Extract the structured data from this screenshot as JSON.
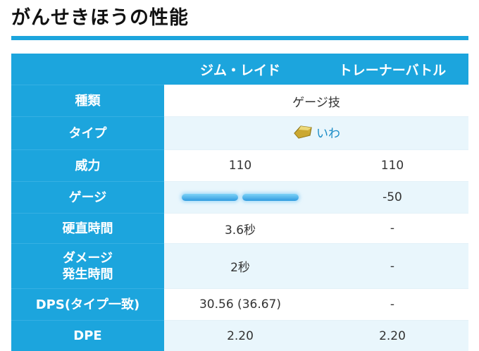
{
  "page": {
    "title": "がんせきほうの性能",
    "accent_color": "#1ca5dd"
  },
  "table": {
    "columns": [
      "ジム・レイド",
      "トレーナーバトル"
    ],
    "rows": [
      {
        "label": "種類",
        "merged": "ゲージ技"
      },
      {
        "label": "タイプ",
        "type_icon": "rock-type-icon",
        "type_name": "いわ"
      },
      {
        "label": "威力",
        "raid": "110",
        "battle": "110"
      },
      {
        "label": "ゲージ",
        "raid_gauge": {
          "bars": 2
        },
        "battle": "-50"
      },
      {
        "label": "硬直時間",
        "raid": "3.6秒",
        "battle": "-"
      },
      {
        "label_line1": "ダメージ",
        "label_line2": "発生時間",
        "raid": "2秒",
        "battle": "-"
      },
      {
        "label": "DPS(タイプ一致)",
        "raid": "30.56 (36.67)",
        "battle": "-"
      },
      {
        "label": "DPE",
        "raid": "2.20",
        "battle": "2.20"
      }
    ]
  }
}
